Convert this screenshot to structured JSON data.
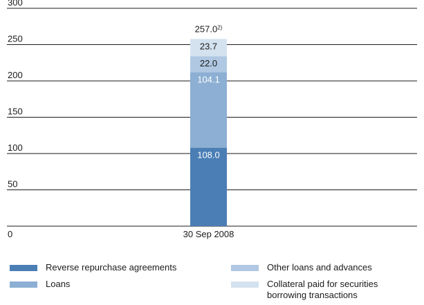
{
  "chart_data": {
    "type": "bar",
    "stacked": true,
    "categories": [
      "30 Sep 2008"
    ],
    "ylim": [
      0,
      300
    ],
    "yticks": [
      0,
      50,
      100,
      150,
      200,
      250,
      300
    ],
    "total_label": "257.0",
    "total_footnote": "2)",
    "grid": true,
    "legend_placement": "bottom",
    "series": [
      {
        "name": "Reverse repurchase agreements",
        "values": [
          108.0
        ],
        "label": "108.0",
        "color": "#4a7eb5",
        "label_color": "#ffffff"
      },
      {
        "name": "Loans",
        "values": [
          104.1
        ],
        "label": "104.1",
        "color": "#8cafd3",
        "label_color": "#ffffff"
      },
      {
        "name": "Other loans and advances",
        "values": [
          22.0
        ],
        "label": "22.0",
        "color": "#b0c8e2",
        "label_color": "#1a1a1a"
      },
      {
        "name": "Collateral paid for securities\nborrowing transactions",
        "values": [
          23.7
        ],
        "label": "23.7",
        "color": "#d4e2f0",
        "label_color": "#1a1a1a"
      }
    ]
  }
}
